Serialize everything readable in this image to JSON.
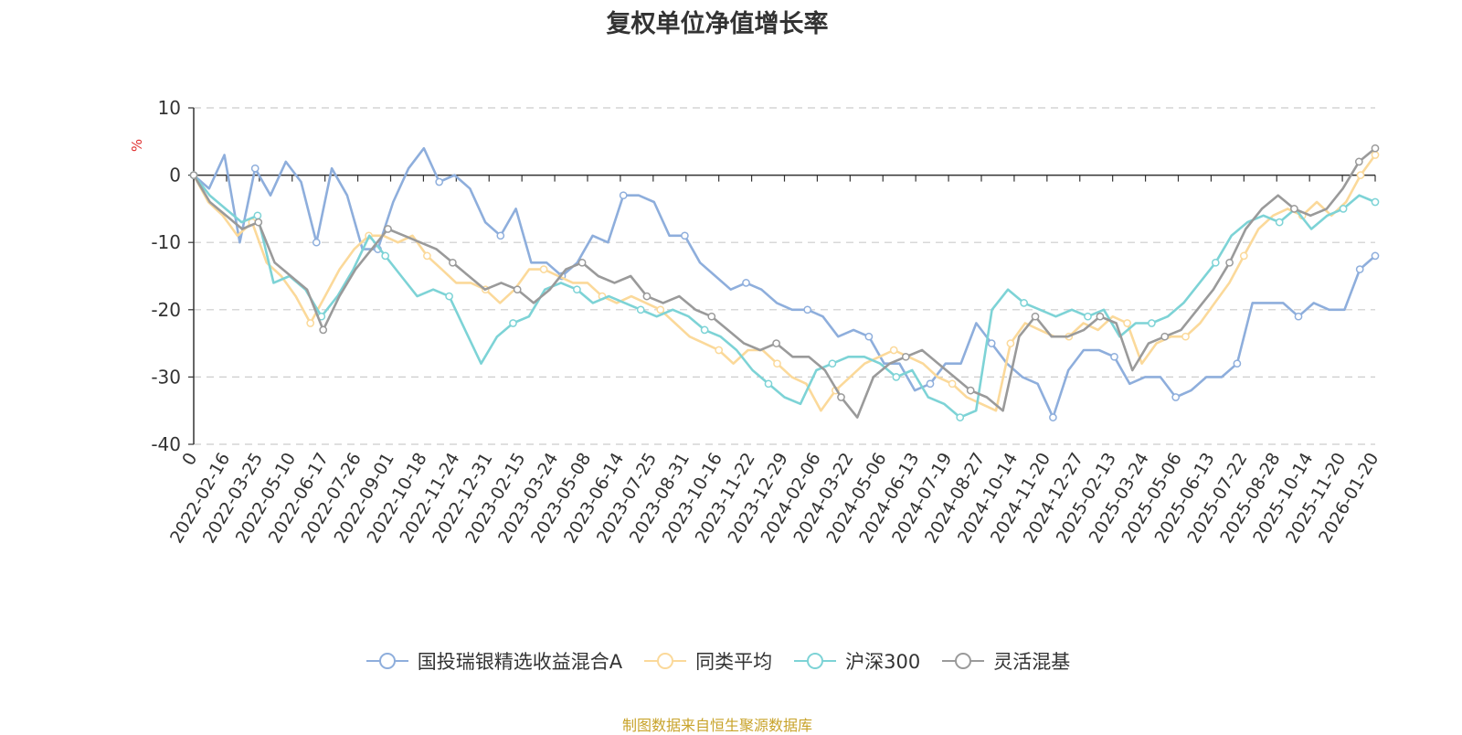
{
  "chart_data": {
    "type": "line",
    "title": "复权单位净值增长率",
    "ylabel": "%",
    "xlabel": "",
    "ylim": [
      -40,
      10
    ],
    "yticks": [
      10,
      0,
      -10,
      -20,
      -30,
      -40
    ],
    "grid": true,
    "legend_position": "bottom-center",
    "x_tick_labels": [
      "0",
      "2022-02-16",
      "2022-03-25",
      "2022-05-10",
      "2022-06-17",
      "2022-07-26",
      "2022-09-01",
      "2022-10-18",
      "2022-11-24",
      "2022-12-31",
      "2023-02-15",
      "2023-03-24",
      "2023-05-08",
      "2023-06-14",
      "2023-07-25",
      "2023-08-31",
      "2023-10-16",
      "2023-11-22",
      "2023-12-29",
      "2024-02-06",
      "2024-03-22",
      "2024-05-06",
      "2024-06-13",
      "2024-07-19",
      "2024-08-27",
      "2024-10-14",
      "2024-11-20",
      "2024-12-27",
      "2025-02-13",
      "2025-03-24",
      "2025-05-06",
      "2025-06-13",
      "2025-07-22",
      "2025-08-28",
      "2025-10-14",
      "2025-11-20",
      "2026-01-20"
    ],
    "series": [
      {
        "name": "国投瑞银精选收益混合A",
        "color": "#8eaedc",
        "values": [
          0,
          -2,
          3,
          -10,
          1,
          -3,
          2,
          -1,
          -10,
          1,
          -3,
          -11,
          -11,
          -4,
          1,
          4,
          -1,
          0,
          -2,
          -7,
          -9,
          -5,
          -13,
          -13,
          -15,
          -13,
          -9,
          -10,
          -3,
          -3,
          -4,
          -9,
          -9,
          -13,
          -15,
          -17,
          -16,
          -17,
          -19,
          -20,
          -20,
          -21,
          -24,
          -23,
          -24,
          -28,
          -28,
          -32,
          -31,
          -28,
          -28,
          -22,
          -25,
          -28,
          -30,
          -31,
          -36,
          -29,
          -26,
          -26,
          -27,
          -31,
          -30,
          -30,
          -33,
          -32,
          -30,
          -30,
          -28,
          -19,
          -19,
          -19,
          -21,
          -19,
          -20,
          -20,
          -14,
          -12
        ]
      },
      {
        "name": "同类平均",
        "color": "#fbd99a",
        "values": [
          0,
          -4,
          -6,
          -9,
          -7,
          -13,
          -15,
          -18,
          -22,
          -18,
          -14,
          -11,
          -9,
          -9,
          -10,
          -9,
          -12,
          -14,
          -16,
          -16,
          -17,
          -19,
          -17,
          -14,
          -14,
          -15,
          -16,
          -16,
          -18,
          -19,
          -18,
          -19,
          -20,
          -22,
          -24,
          -25,
          -26,
          -28,
          -26,
          -26,
          -28,
          -30,
          -31,
          -35,
          -32,
          -30,
          -28,
          -27,
          -26,
          -27,
          -28,
          -30,
          -31,
          -33,
          -34,
          -35,
          -25,
          -22,
          -23,
          -24,
          -24,
          -22,
          -23,
          -21,
          -22,
          -28,
          -25,
          -24,
          -24,
          -22,
          -19,
          -16,
          -12,
          -8,
          -6,
          -5,
          -6,
          -4,
          -6,
          -4,
          0,
          3
        ]
      },
      {
        "name": "沪深300",
        "color": "#7dd3d6",
        "values": [
          0,
          -3,
          -5,
          -7,
          -6,
          -16,
          -15,
          -17,
          -21,
          -18,
          -14,
          -9,
          -12,
          -15,
          -18,
          -17,
          -18,
          -23,
          -28,
          -24,
          -22,
          -21,
          -17,
          -16,
          -17,
          -19,
          -18,
          -19,
          -20,
          -21,
          -20,
          -21,
          -23,
          -24,
          -26,
          -29,
          -31,
          -33,
          -34,
          -29,
          -28,
          -27,
          -27,
          -28,
          -30,
          -29,
          -33,
          -34,
          -36,
          -35,
          -20,
          -17,
          -19,
          -20,
          -21,
          -20,
          -21,
          -20,
          -24,
          -22,
          -22,
          -21,
          -19,
          -16,
          -13,
          -9,
          -7,
          -6,
          -7,
          -5,
          -8,
          -6,
          -5,
          -3,
          -4
        ]
      },
      {
        "name": "灵活混基",
        "color": "#9a9a9a",
        "values": [
          0,
          -4,
          -6,
          -8,
          -7,
          -13,
          -15,
          -17,
          -23,
          -18,
          -14,
          -11,
          -8,
          -9,
          -10,
          -11,
          -13,
          -15,
          -17,
          -16,
          -17,
          -19,
          -17,
          -14,
          -13,
          -15,
          -16,
          -15,
          -18,
          -19,
          -18,
          -20,
          -21,
          -23,
          -25,
          -26,
          -25,
          -27,
          -27,
          -29,
          -33,
          -36,
          -30,
          -28,
          -27,
          -26,
          -28,
          -30,
          -32,
          -33,
          -35,
          -24,
          -21,
          -24,
          -24,
          -23,
          -21,
          -22,
          -29,
          -25,
          -24,
          -23,
          -20,
          -17,
          -13,
          -8,
          -5,
          -3,
          -5,
          -6,
          -5,
          -2,
          2,
          4
        ]
      }
    ]
  },
  "legend": {
    "items": [
      "国投瑞银精选收益混合A",
      "同类平均",
      "沪深300",
      "灵活混基"
    ]
  },
  "source_note": "制图数据来自恒生聚源数据库"
}
